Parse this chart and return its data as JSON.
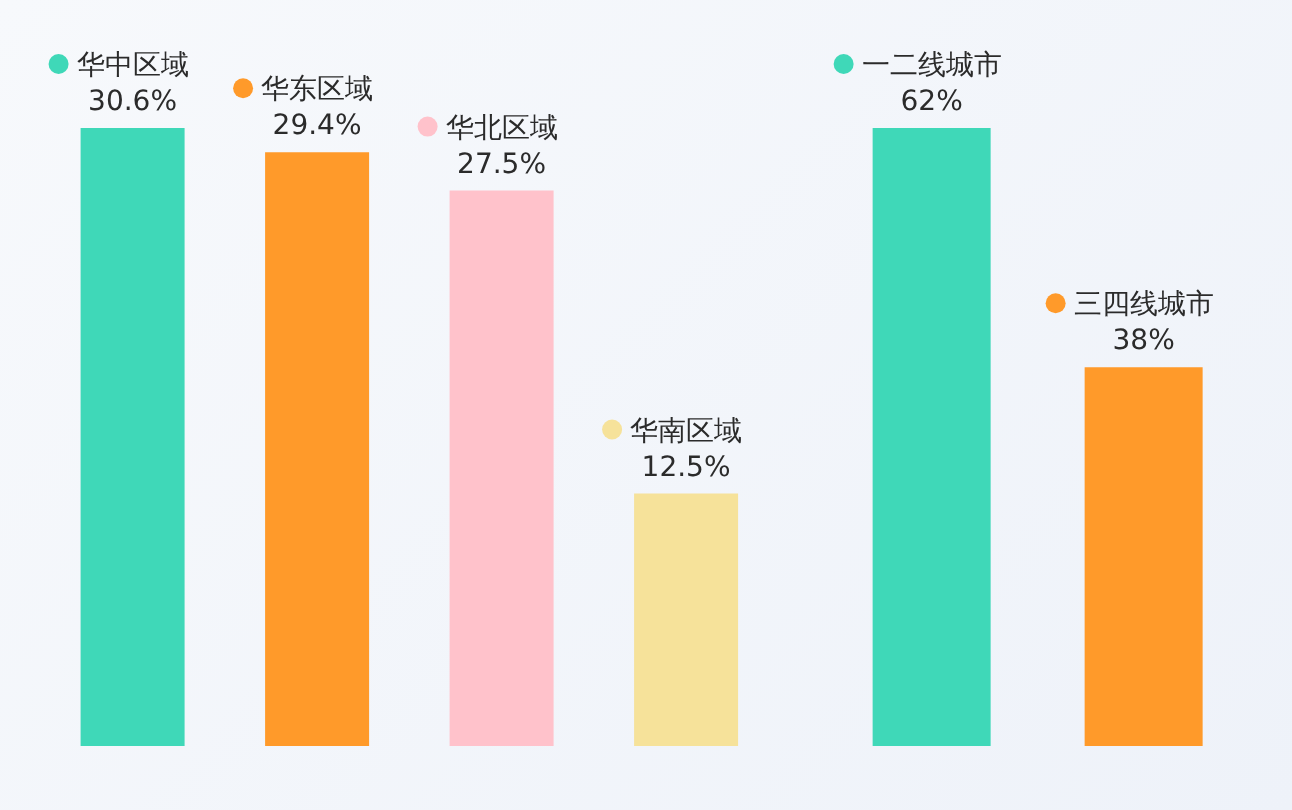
{
  "chart_data": [
    {
      "type": "bar",
      "categories": [
        "华中区域",
        "华东区域",
        "华北区域",
        "华南区域"
      ],
      "values": [
        30.6,
        29.4,
        27.5,
        12.5
      ],
      "colors": [
        "#3fd8b8",
        "#ff9a2a",
        "#ffc2cb",
        "#f6e29a"
      ],
      "value_labels": [
        "30.6%",
        "29.4%",
        "27.5%",
        "12.5%"
      ],
      "tick_labels": false
    },
    {
      "type": "bar",
      "categories": [
        "一二线城市",
        "三四线城市"
      ],
      "values": [
        62,
        38
      ],
      "colors": [
        "#3fd8b8",
        "#ff9a2a"
      ],
      "value_labels": [
        "62%",
        "38%"
      ],
      "tick_labels": false
    }
  ]
}
